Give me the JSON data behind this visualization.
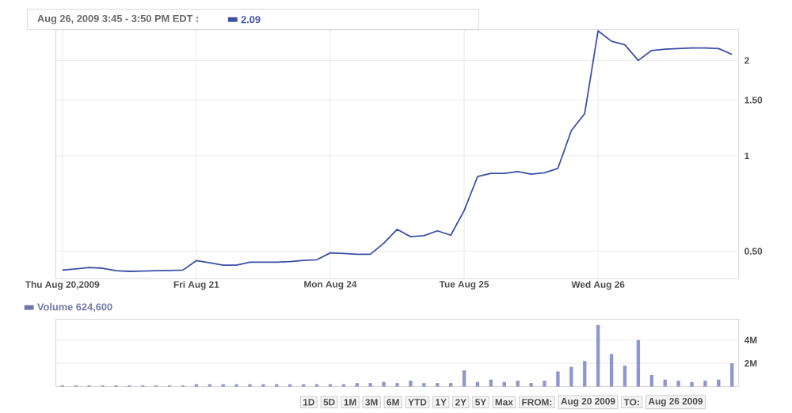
{
  "chart_data": [
    {
      "type": "line",
      "title": "Aug 26, 2009 3:45 - 3:50 PM EDT :",
      "annotations": [
        "2.09"
      ],
      "categories": [
        "Thu Aug 20,2009",
        null,
        null,
        null,
        null,
        null,
        null,
        null,
        null,
        null,
        "Fri Aug 21",
        null,
        null,
        null,
        null,
        null,
        null,
        null,
        null,
        null,
        "Mon Aug 24",
        null,
        null,
        null,
        null,
        null,
        null,
        null,
        null,
        null,
        "Tue Aug 25",
        null,
        null,
        null,
        null,
        null,
        null,
        null,
        null,
        null,
        "Wed Aug 26",
        null,
        null,
        null,
        null,
        null,
        null,
        null,
        null,
        null,
        null
      ],
      "series": [
        {
          "color": "#3b4fa6",
          "values": [
            0.436,
            0.44,
            0.444,
            0.442,
            0.434,
            0.432,
            0.433,
            0.434,
            0.435,
            0.436,
            0.467,
            0.46,
            0.452,
            0.452,
            0.462,
            0.462,
            0.462,
            0.464,
            0.468,
            0.47,
            0.494,
            0.492,
            0.489,
            0.489,
            0.53,
            0.586,
            0.556,
            0.56,
            0.58,
            0.562,
            0.672,
            0.86,
            0.88,
            0.88,
            0.892,
            0.875,
            0.884,
            0.913,
            1.2,
            1.36,
            2.48,
            2.3,
            2.24,
            2.0,
            2.15,
            2.17,
            2.18,
            2.19,
            2.19,
            2.18,
            2.09
          ]
        }
      ],
      "ylim": [
        0.41,
        2.5
      ],
      "yticks": [
        {
          "value": 0.5,
          "label": "0.50"
        },
        1,
        {
          "value": 1.5,
          "label": "1.50"
        },
        2
      ],
      "log": "y",
      "grid": true
    },
    {
      "type": "bar",
      "annotations": [
        "Volume 624,600",
        "1D",
        "5D",
        "1M",
        "3M",
        "6M",
        "YTD",
        "1Y",
        "2Y",
        "5Y",
        "Max",
        "FROM:",
        "Aug 20 2009",
        "TO:",
        "Aug 26 2009"
      ],
      "categories": [
        null,
        null,
        null,
        null,
        null,
        null,
        null,
        null,
        null,
        null,
        null,
        null,
        null,
        null,
        null,
        null,
        null,
        null,
        null,
        null,
        null,
        null,
        null,
        null,
        null,
        null,
        null,
        null,
        null,
        null,
        null,
        null,
        null,
        null,
        null,
        null,
        null,
        null,
        null,
        null,
        null,
        null,
        null,
        null,
        null,
        null,
        null,
        null,
        null,
        null,
        null
      ],
      "series": [
        {
          "color": "#8e96cf",
          "values": [
            0.1,
            0.1,
            0.1,
            0.1,
            0.1,
            0.1,
            0.1,
            0.1,
            0.1,
            0.1,
            0.2,
            0.2,
            0.2,
            0.2,
            0.2,
            0.2,
            0.2,
            0.2,
            0.2,
            0.2,
            0.2,
            0.2,
            0.3,
            0.3,
            0.4,
            0.3,
            0.5,
            0.3,
            0.3,
            0.3,
            1.4,
            0.4,
            0.6,
            0.4,
            0.5,
            0.3,
            0.5,
            1.3,
            1.7,
            2.2,
            5.3,
            2.8,
            1.8,
            4.0,
            1.0,
            0.6,
            0.5,
            0.4,
            0.5,
            0.6,
            2.0
          ]
        }
      ],
      "ylim": [
        0,
        5.8
      ],
      "yticks": [
        {
          "value": 2,
          "label": "2M"
        },
        {
          "value": 4,
          "label": "4M"
        }
      ],
      "tick_labels": "y",
      "grid": "y"
    }
  ]
}
